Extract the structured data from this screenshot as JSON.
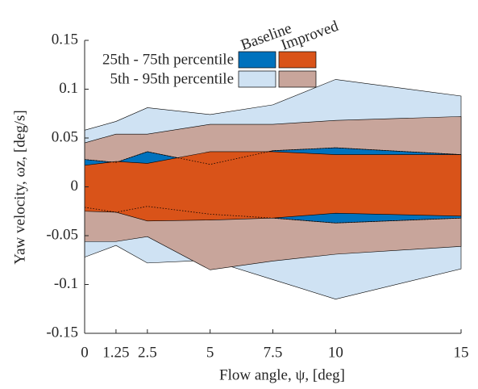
{
  "chart_data": {
    "type": "band",
    "xlabel": "Flow angle, ψ, [deg]",
    "ylabel": "Yaw velocity, ωz, [deg/s]",
    "x": [
      0,
      1.25,
      2.5,
      5,
      7.5,
      10,
      15
    ],
    "xlim": [
      0,
      15
    ],
    "xticks": [
      0,
      1.25,
      2.5,
      5,
      7.5,
      10,
      15
    ],
    "ylim": [
      -0.15,
      0.15
    ],
    "yticks": [
      -0.15,
      -0.1,
      -0.05,
      0,
      0.05,
      0.1,
      0.15
    ],
    "band_names": [
      "25th - 75th percentile",
      "5th - 95th percentile"
    ],
    "series": [
      {
        "name": "Baseline",
        "bands": [
          {
            "color": "#0072bd",
            "lower": [
              -0.021,
              -0.026,
              -0.02,
              -0.028,
              -0.032,
              -0.037,
              -0.032
            ],
            "upper": [
              0.028,
              0.025,
              0.036,
              0.023,
              0.037,
              0.04,
              0.033
            ]
          },
          {
            "color": "#cfe2f3",
            "lower": [
              -0.072,
              -0.06,
              -0.078,
              -0.075,
              -0.095,
              -0.115,
              -0.084
            ],
            "upper": [
              0.058,
              0.067,
              0.081,
              0.074,
              0.084,
              0.11,
              0.093
            ]
          }
        ]
      },
      {
        "name": "Improved",
        "bands": [
          {
            "color": "#d95319",
            "lower": [
              -0.025,
              -0.026,
              -0.035,
              -0.034,
              -0.032,
              -0.027,
              -0.03
            ],
            "upper": [
              0.022,
              0.026,
              0.024,
              0.036,
              0.036,
              0.033,
              0.033
            ]
          },
          {
            "color": "#c8a59b",
            "lower": [
              -0.056,
              -0.056,
              -0.051,
              -0.085,
              -0.076,
              -0.069,
              -0.061
            ],
            "upper": [
              0.045,
              0.054,
              0.054,
              0.064,
              0.064,
              0.068,
              0.072
            ]
          }
        ]
      }
    ]
  }
}
